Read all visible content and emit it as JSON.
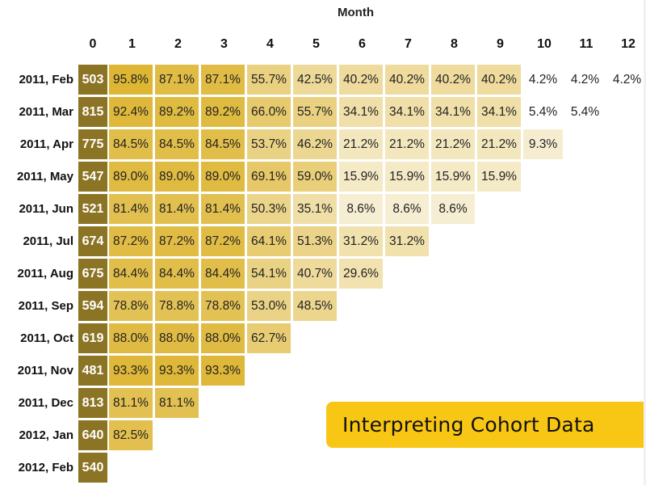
{
  "chart_data": {
    "type": "heatmap",
    "title": "Interpreting Cohort Data",
    "xlabel": "Month",
    "ylabel": "",
    "columns": [
      "0",
      "1",
      "2",
      "3",
      "4",
      "5",
      "6",
      "7",
      "8",
      "9",
      "10",
      "11",
      "12"
    ],
    "rows": [
      {
        "cohort": "2011, Feb",
        "size": "503",
        "values": [
          "95.8%",
          "87.1%",
          "87.1%",
          "55.7%",
          "42.5%",
          "40.2%",
          "40.2%",
          "40.2%",
          "40.2%",
          "4.2%",
          "4.2%",
          "4.2%"
        ]
      },
      {
        "cohort": "2011, Mar",
        "size": "815",
        "values": [
          "92.4%",
          "89.2%",
          "89.2%",
          "66.0%",
          "55.7%",
          "34.1%",
          "34.1%",
          "34.1%",
          "34.1%",
          "5.4%",
          "5.4%"
        ]
      },
      {
        "cohort": "2011, Apr",
        "size": "775",
        "values": [
          "84.5%",
          "84.5%",
          "84.5%",
          "53.7%",
          "46.2%",
          "21.2%",
          "21.2%",
          "21.2%",
          "21.2%",
          "9.3%"
        ]
      },
      {
        "cohort": "2011, May",
        "size": "547",
        "values": [
          "89.0%",
          "89.0%",
          "89.0%",
          "69.1%",
          "59.0%",
          "15.9%",
          "15.9%",
          "15.9%",
          "15.9%"
        ]
      },
      {
        "cohort": "2011, Jun",
        "size": "521",
        "values": [
          "81.4%",
          "81.4%",
          "81.4%",
          "50.3%",
          "35.1%",
          "8.6%",
          "8.6%",
          "8.6%"
        ]
      },
      {
        "cohort": "2011, Jul",
        "size": "674",
        "values": [
          "87.2%",
          "87.2%",
          "87.2%",
          "64.1%",
          "51.3%",
          "31.2%",
          "31.2%"
        ]
      },
      {
        "cohort": "2011, Aug",
        "size": "675",
        "values": [
          "84.4%",
          "84.4%",
          "84.4%",
          "54.1%",
          "40.7%",
          "29.6%"
        ]
      },
      {
        "cohort": "2011, Sep",
        "size": "594",
        "values": [
          "78.8%",
          "78.8%",
          "78.8%",
          "53.0%",
          "48.5%"
        ]
      },
      {
        "cohort": "2011, Oct",
        "size": "619",
        "values": [
          "88.0%",
          "88.0%",
          "88.0%",
          "62.7%"
        ]
      },
      {
        "cohort": "2011, Nov",
        "size": "481",
        "values": [
          "93.3%",
          "93.3%",
          "93.3%"
        ]
      },
      {
        "cohort": "2011, Dec",
        "size": "813",
        "values": [
          "81.1%",
          "81.1%"
        ]
      },
      {
        "cohort": "2012, Jan",
        "size": "640",
        "values": [
          "82.5%"
        ]
      },
      {
        "cohort": "2012, Feb",
        "size": "540",
        "values": []
      }
    ],
    "colors": {
      "size_cell": "#8c7425",
      "high": "#e0b93a",
      "low": "#f7f0d8"
    }
  },
  "banner": {
    "label": "Interpreting Cohort Data",
    "color": "#f8c614"
  }
}
